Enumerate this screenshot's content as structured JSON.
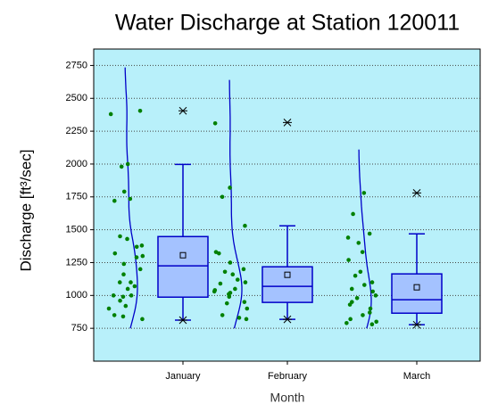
{
  "chart_data": {
    "type": "box",
    "title": "Water Discharge at Station 120011",
    "x_label": "Month",
    "y_label": "Discharge [ft³/sec]",
    "categories": [
      "January",
      "February",
      "March"
    ],
    "ylim": [
      500,
      2875
    ],
    "yticks": [
      750,
      1000,
      1250,
      1500,
      1750,
      2000,
      2250,
      2500,
      2750
    ],
    "grid": true,
    "background": "#b8f0fa",
    "box_color": "#a4c2ff",
    "line_color": "#0000c8",
    "point_color": "#008000",
    "boxes": [
      {
        "min": 812,
        "q1": 987,
        "median": 1225,
        "q3": 1448,
        "whisker_high": 1997,
        "mean": 1306,
        "max": 2405,
        "points": [
          2405,
          2380,
          2000,
          1980,
          1790,
          1735,
          1720,
          1450,
          1430,
          1380,
          1370,
          1320,
          1300,
          1290,
          1240,
          1200,
          1160,
          1100,
          1100,
          1070,
          1050,
          1000,
          990,
          1000,
          960,
          920,
          900,
          850,
          840,
          820
        ]
      },
      {
        "min": 818,
        "q1": 947,
        "median": 1069,
        "q3": 1218,
        "whisker_high": 1530,
        "mean": 1157,
        "max": 2316,
        "points": [
          2310,
          1820,
          1750,
          1530,
          1330,
          1320,
          1250,
          1200,
          1180,
          1160,
          1120,
          1100,
          1090,
          1050,
          1040,
          1030,
          1020,
          1010,
          990,
          950,
          940,
          900,
          850,
          830,
          820
        ]
      },
      {
        "min": 777,
        "q1": 865,
        "median": 967,
        "q3": 1164,
        "whisker_high": 1469,
        "mean": 1062,
        "max": 1780,
        "points": [
          1780,
          1620,
          1470,
          1440,
          1400,
          1330,
          1270,
          1180,
          1150,
          1100,
          1080,
          1050,
          1030,
          1000,
          980,
          950,
          930,
          900,
          870,
          850,
          820,
          800,
          790,
          780
        ]
      }
    ]
  }
}
